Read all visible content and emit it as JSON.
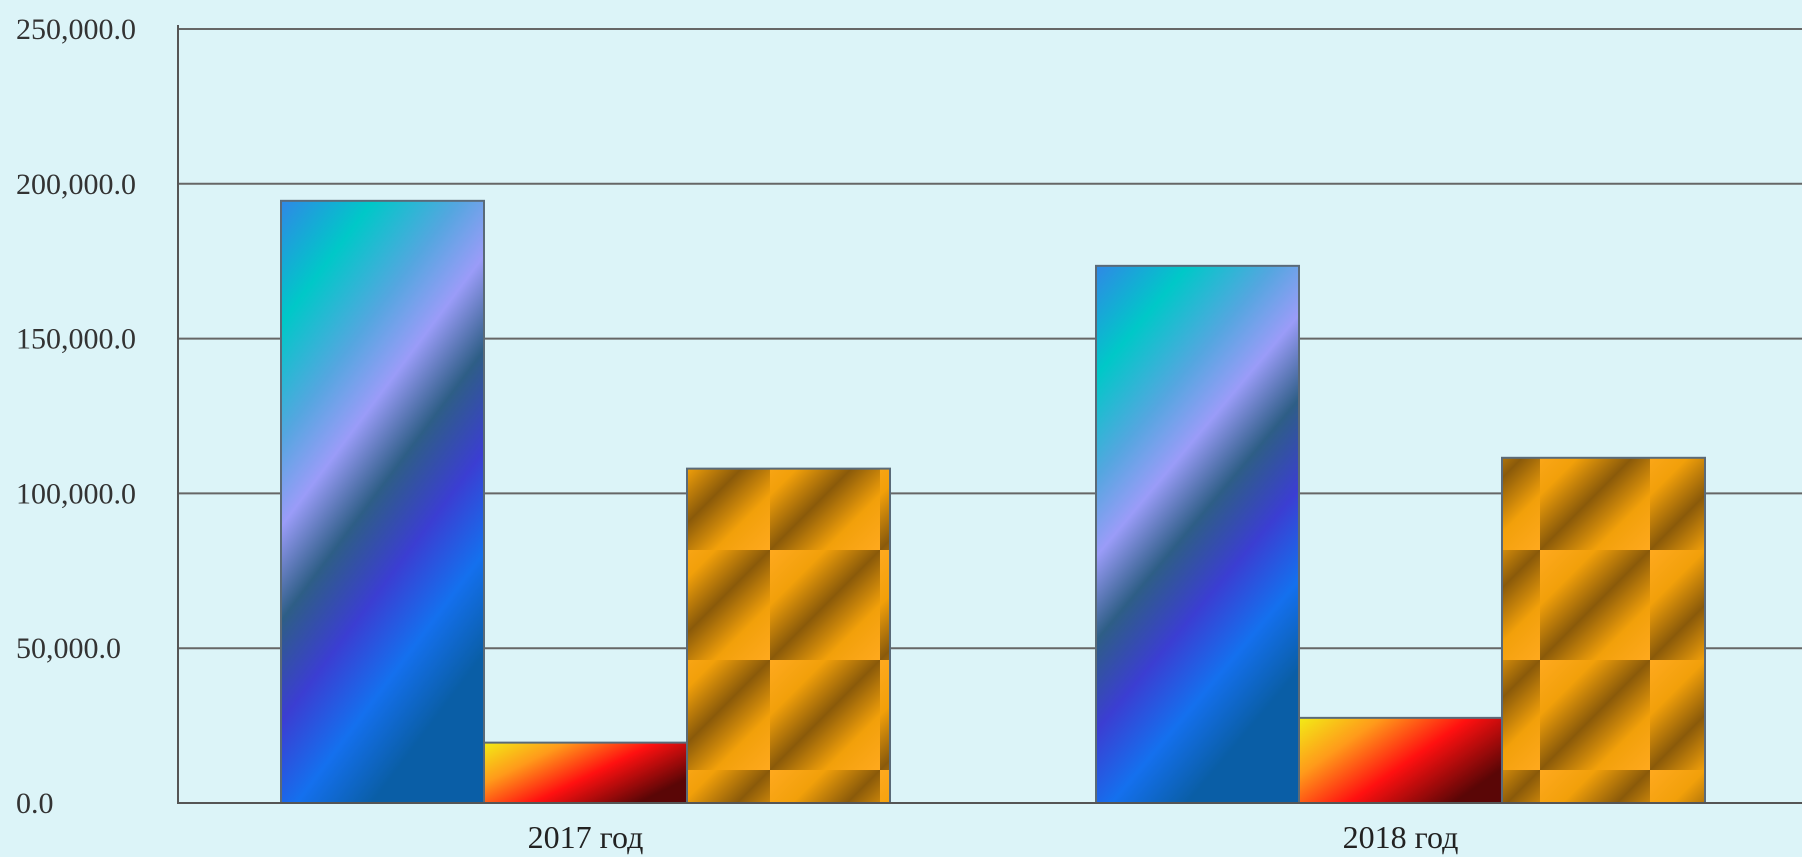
{
  "chart_data": {
    "type": "bar",
    "title": "",
    "xlabel": "",
    "ylabel": "",
    "categories": [
      "2017 год",
      "2018 год"
    ],
    "series": [
      {
        "values": [
          194500,
          173500
        ],
        "style": "blue-violet-gradient"
      },
      {
        "values": [
          19500,
          27500
        ],
        "style": "yellow-red-gradient"
      },
      {
        "values": [
          108000,
          111500
        ],
        "style": "orange-brown-stripes"
      }
    ],
    "ylim": [
      0,
      250000
    ],
    "y_ticks": [
      0,
      50000,
      100000,
      150000,
      200000,
      250000
    ],
    "y_tick_labels": [
      "0.0",
      "50,000.0",
      "100,000.0",
      "150,000.0",
      "200,000.0",
      "250,000.0"
    ],
    "grid": true,
    "legend": "none",
    "colors": {
      "background": "#dcf4f8",
      "gridline": "#666666",
      "axis": "#555555",
      "bar_border": "#5a6a78"
    }
  }
}
